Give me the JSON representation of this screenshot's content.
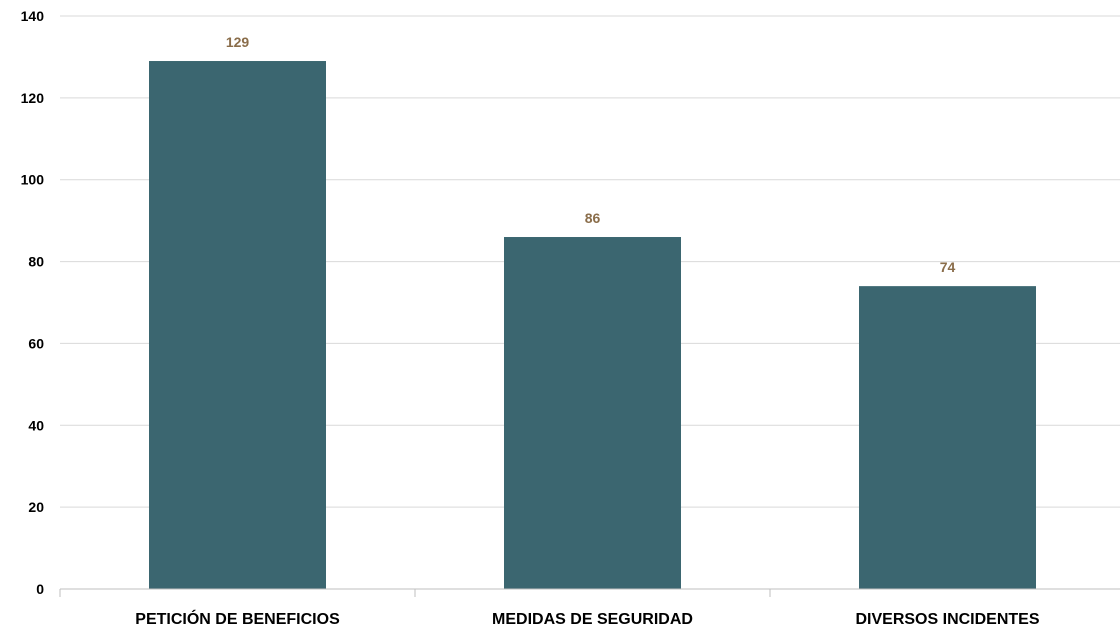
{
  "chart_data": {
    "type": "bar",
    "title": "",
    "xlabel": "",
    "ylabel": "",
    "categories": [
      "PETICIÓN DE BENEFICIOS",
      "MEDIDAS DE SEGURIDAD",
      "DIVERSOS INCIDENTES"
    ],
    "values": [
      129,
      86,
      74
    ],
    "data_labels": [
      "129",
      "86",
      "74"
    ],
    "ylim": [
      0,
      140
    ],
    "yticks": [
      0,
      20,
      40,
      60,
      80,
      100,
      120,
      140
    ],
    "ytick_labels": [
      "0",
      "20",
      "40",
      "60",
      "80",
      "100",
      "120",
      "140"
    ],
    "grid": true,
    "legend": "none",
    "colors": {
      "bar": "#3b6670",
      "data_label": "#8a6d4a",
      "grid": "#d9d9d9",
      "axis": "#bfbfbf"
    }
  }
}
